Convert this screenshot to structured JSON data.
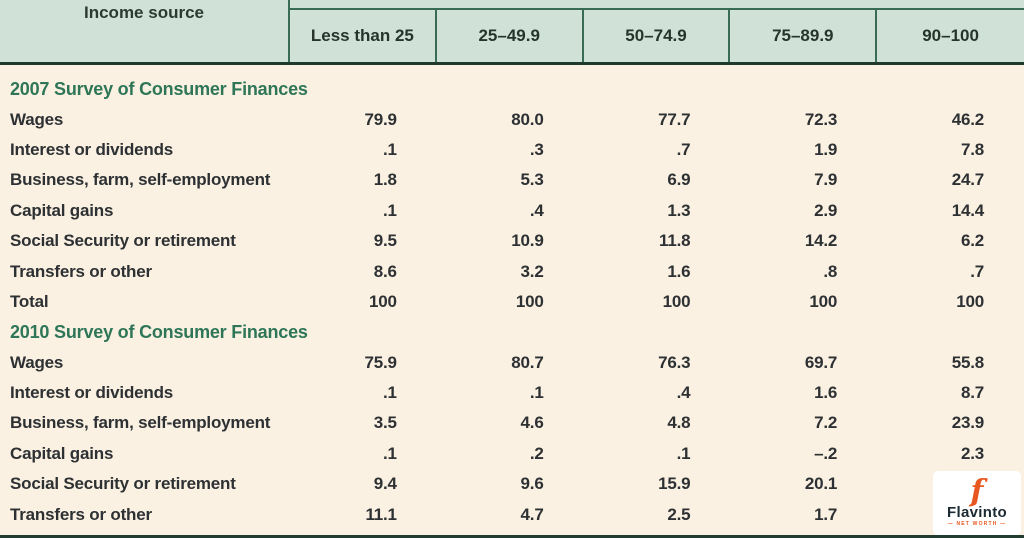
{
  "page": {
    "corner_header": "Income source",
    "columns": [
      "Less than 25",
      "25–49.9",
      "50–74.9",
      "75–89.9",
      "90–100"
    ],
    "sections": [
      {
        "heading": "2007 Survey of Consumer Finances",
        "rows": [
          {
            "label": "Wages",
            "values": [
              "79.9",
              "80.0",
              "77.7",
              "72.3",
              "46.2"
            ]
          },
          {
            "label": "Interest or dividends",
            "values": [
              ".1",
              ".3",
              ".7",
              "1.9",
              "7.8"
            ]
          },
          {
            "label": "Business, farm, self-employment",
            "values": [
              "1.8",
              "5.3",
              "6.9",
              "7.9",
              "24.7"
            ]
          },
          {
            "label": "Capital gains",
            "values": [
              ".1",
              ".4",
              "1.3",
              "2.9",
              "14.4"
            ]
          },
          {
            "label": "Social Security or retirement",
            "values": [
              "9.5",
              "10.9",
              "11.8",
              "14.2",
              "6.2"
            ]
          },
          {
            "label": "Transfers or other",
            "values": [
              "8.6",
              "3.2",
              "1.6",
              ".8",
              ".7"
            ]
          },
          {
            "label": "Total",
            "values": [
              "100",
              "100",
              "100",
              "100",
              "100"
            ],
            "total": true
          }
        ]
      },
      {
        "heading": "2010 Survey of Consumer Finances",
        "rows": [
          {
            "label": "Wages",
            "values": [
              "75.9",
              "80.7",
              "76.3",
              "69.7",
              "55.8"
            ]
          },
          {
            "label": "Interest or dividends",
            "values": [
              ".1",
              ".1",
              ".4",
              "1.6",
              "8.7"
            ]
          },
          {
            "label": "Business, farm, self-employment",
            "values": [
              "3.5",
              "4.6",
              "4.8",
              "7.2",
              "23.9"
            ]
          },
          {
            "label": "Capital gains",
            "values": [
              ".1",
              ".2",
              ".1",
              "–.2",
              "2.3"
            ]
          },
          {
            "label": "Social Security or retirement",
            "values": [
              "9.4",
              "9.6",
              "15.9",
              "20.1",
              ""
            ]
          },
          {
            "label": "Transfers or other",
            "values": [
              "11.1",
              "4.7",
              "2.5",
              "1.7",
              ""
            ]
          }
        ]
      }
    ]
  },
  "watermark": {
    "monogram": "f",
    "brand": "Flavinto",
    "tagline": "— NET WORTH —"
  },
  "colors": {
    "header_bg": "#d0e2d7",
    "body_bg": "#faf1e2",
    "heading_green": "#2e7657",
    "border_green": "#3a6b55",
    "rule_dark": "#1e3a2f",
    "text": "#2e3134",
    "brand_orange": "#e8571f",
    "brand_navy": "#1c2a33"
  }
}
